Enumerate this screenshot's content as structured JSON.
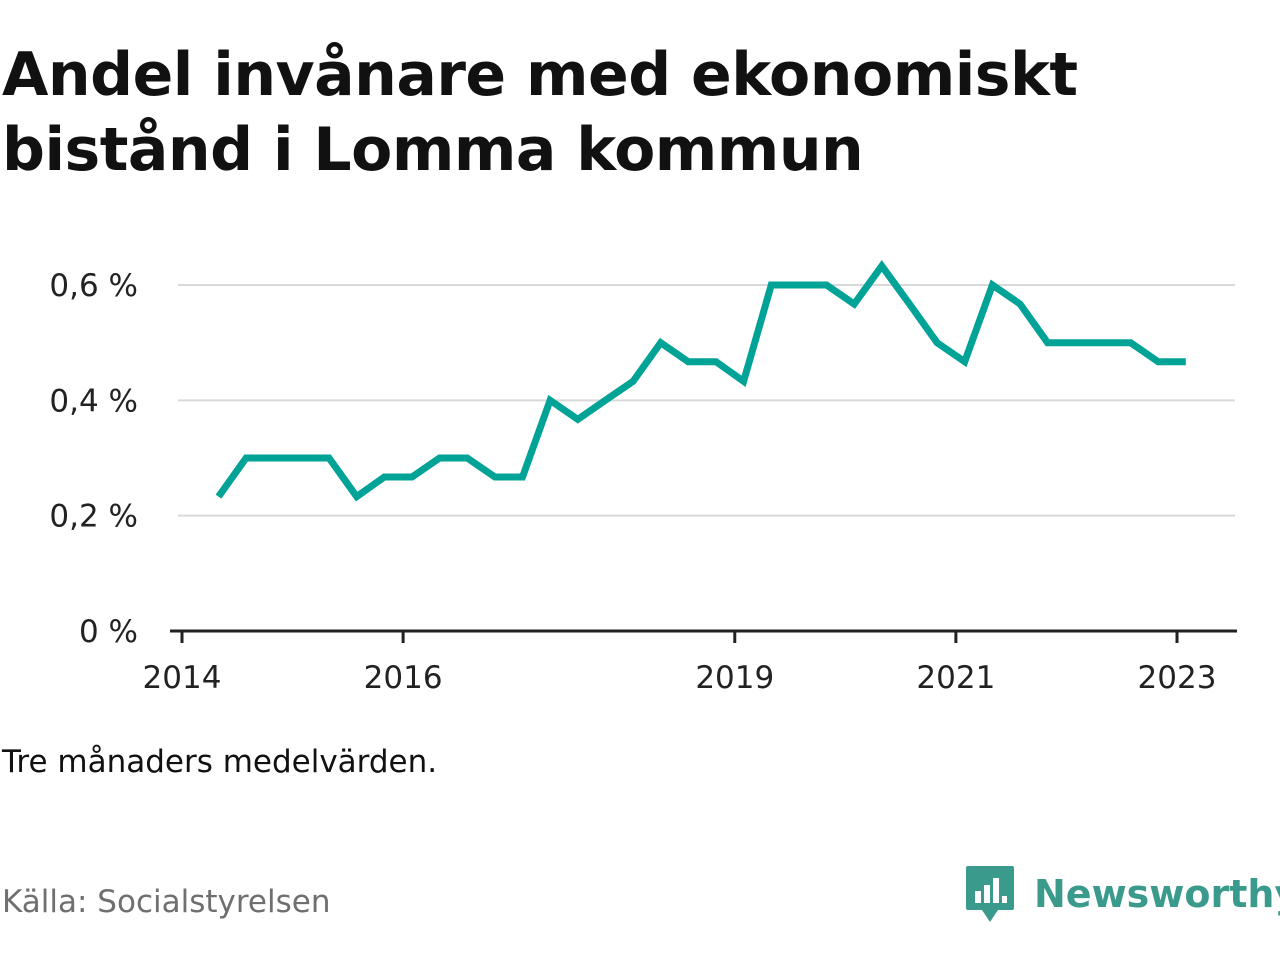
{
  "title": "Andel invånare med ekonomiskt bistånd i Lomma kommun",
  "note": "Tre månaders medelvärden.",
  "source": "Källa: Socialstyrelsen",
  "brand": {
    "name": "Newsworthy",
    "color": "#3a9a8c",
    "icon": "chart-bubble-icon"
  },
  "colors": {
    "line": "#00a396",
    "grid": "#d9d9d9",
    "axis": "#222222"
  },
  "chart_data": {
    "type": "line",
    "title": "Andel invånare med ekonomiskt bistånd i Lomma kommun",
    "xlabel": "",
    "ylabel": "",
    "x_ticks": [
      {
        "value": 2016.0,
        "label": "2016"
      },
      {
        "value": 2019.0,
        "label": "2019"
      },
      {
        "value": 2021.0,
        "label": "2021"
      },
      {
        "value": 2023.0,
        "label": "2023"
      }
    ],
    "x_start_label": "2014",
    "y_ticks": [
      {
        "value": 0,
        "label": "0 %"
      },
      {
        "value": 0.2,
        "label": "0,2 %"
      },
      {
        "value": 0.4,
        "label": "0,4 %"
      },
      {
        "value": 0.6,
        "label": "0,6 %"
      }
    ],
    "xlim": [
      2014.0,
      2024.0
    ],
    "ylim": [
      0,
      0.7
    ],
    "grid": true,
    "x": [
      2014.33,
      2014.58,
      2014.83,
      2015.08,
      2015.33,
      2015.58,
      2015.83,
      2016.08,
      2016.33,
      2016.58,
      2016.83,
      2017.08,
      2017.33,
      2017.58,
      2017.83,
      2018.08,
      2018.33,
      2018.58,
      2018.83,
      2019.08,
      2019.33,
      2019.58,
      2019.83,
      2020.08,
      2020.33,
      2020.58,
      2020.83,
      2021.08,
      2021.33,
      2021.58,
      2021.83,
      2022.08,
      2022.33,
      2022.58,
      2022.83,
      2023.08
    ],
    "y": [
      0.233,
      0.3,
      0.3,
      0.3,
      0.3,
      0.233,
      0.267,
      0.267,
      0.3,
      0.3,
      0.267,
      0.267,
      0.4,
      0.367,
      0.4,
      0.433,
      0.5,
      0.467,
      0.467,
      0.433,
      0.6,
      0.6,
      0.6,
      0.567,
      0.633,
      0.567,
      0.5,
      0.467,
      0.6,
      0.567,
      0.5,
      0.5,
      0.5,
      0.5,
      0.467,
      0.467
    ]
  }
}
